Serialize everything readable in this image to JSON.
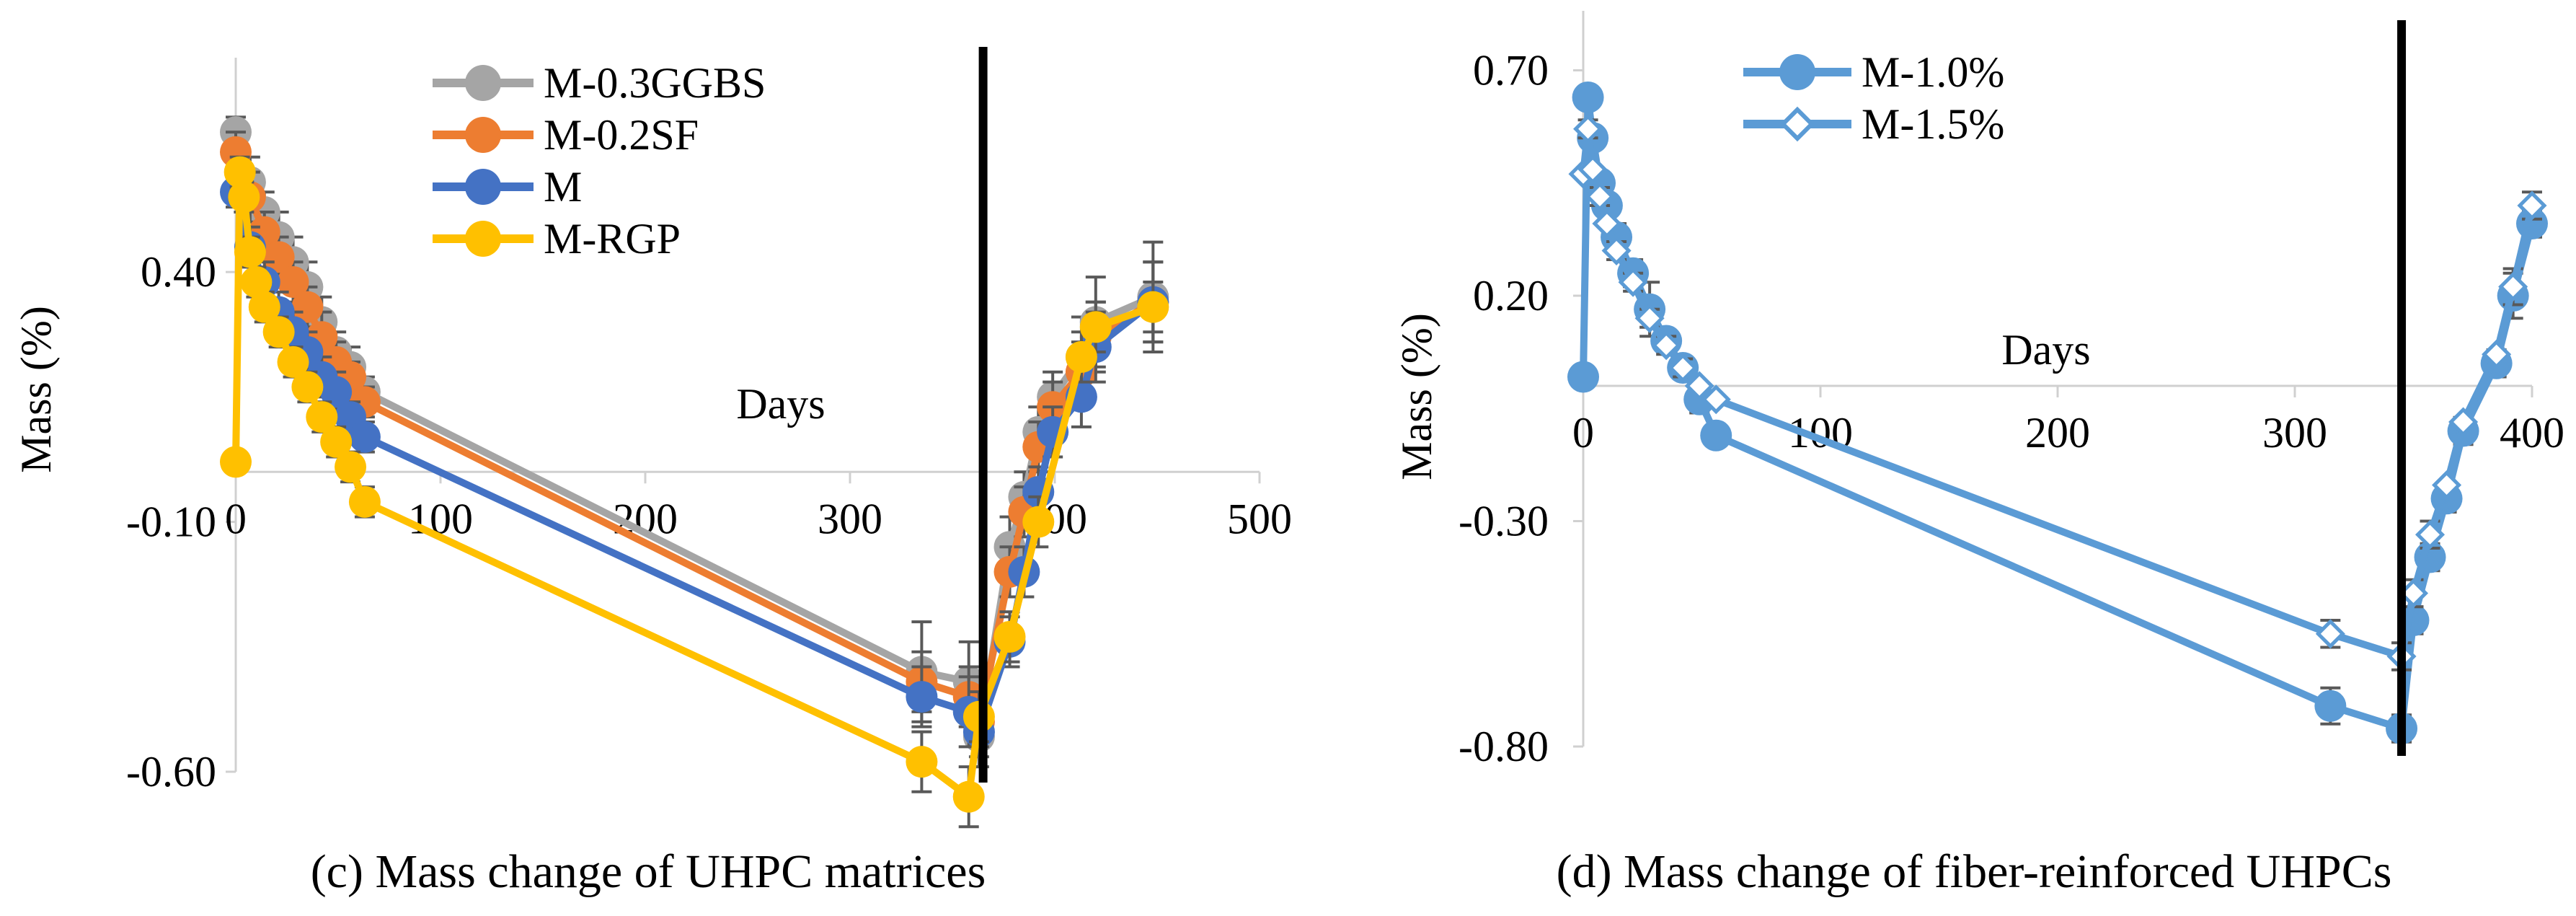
{
  "chart_data": [
    {
      "type": "line",
      "caption": "(c) Mass change of UHPC matrices",
      "xlabel": "Days",
      "ylabel": "Mass  (%)",
      "xlim": [
        0,
        500
      ],
      "ylim": [
        -0.6,
        0.8
      ],
      "x_ticks": [
        "0",
        "100",
        "200",
        "300",
        "400",
        "500"
      ],
      "y_ticks": [
        "0.40",
        "-0.10",
        "-0.60"
      ],
      "y_tick_values": [
        0.4,
        -0.1,
        -0.6
      ],
      "marker_line": 365,
      "legend": [
        "M-0.3GGBS",
        "M-0.2SF",
        "M",
        "M-RGP"
      ],
      "series": [
        {
          "name": "M-0.3GGBS",
          "color": "#A5A5A5",
          "marker": "circle",
          "points": [
            [
              0,
              0.68
            ],
            [
              7,
              0.58
            ],
            [
              14,
              0.52
            ],
            [
              21,
              0.47
            ],
            [
              28,
              0.42
            ],
            [
              35,
              0.37
            ],
            [
              42,
              0.3
            ],
            [
              49,
              0.24
            ],
            [
              56,
              0.21
            ],
            [
              63,
              0.16
            ],
            [
              335,
              -0.4
            ],
            [
              358,
              -0.42
            ],
            [
              363,
              -0.53
            ],
            [
              378,
              -0.15
            ],
            [
              385,
              -0.05
            ],
            [
              392,
              0.08
            ],
            [
              399,
              0.15
            ],
            [
              413,
              0.23
            ],
            [
              420,
              0.3
            ],
            [
              448,
              0.35
            ]
          ],
          "errors": [
            [
              0,
              0.03
            ],
            [
              7,
              0.05
            ],
            [
              14,
              0.04
            ],
            [
              21,
              0.05
            ],
            [
              28,
              0.05
            ],
            [
              35,
              0.05
            ],
            [
              42,
              0.05
            ],
            [
              49,
              0.04
            ],
            [
              56,
              0.04
            ],
            [
              63,
              0.03
            ],
            [
              335,
              0.1
            ],
            [
              358,
              0.08
            ],
            [
              363,
              0.06
            ],
            [
              378,
              0.06
            ],
            [
              385,
              0.05
            ],
            [
              392,
              0.05
            ],
            [
              399,
              0.05
            ],
            [
              413,
              0.08
            ],
            [
              420,
              0.09
            ],
            [
              448,
              0.11
            ]
          ]
        },
        {
          "name": "M-0.2SF",
          "color": "#ED7D31",
          "marker": "circle",
          "points": [
            [
              0,
              0.64
            ],
            [
              7,
              0.55
            ],
            [
              14,
              0.48
            ],
            [
              21,
              0.43
            ],
            [
              28,
              0.38
            ],
            [
              35,
              0.33
            ],
            [
              42,
              0.27
            ],
            [
              49,
              0.22
            ],
            [
              56,
              0.19
            ],
            [
              63,
              0.14
            ],
            [
              335,
              -0.42
            ],
            [
              358,
              -0.45
            ],
            [
              363,
              -0.5
            ],
            [
              378,
              -0.2
            ],
            [
              385,
              -0.08
            ],
            [
              392,
              0.05
            ],
            [
              399,
              0.13
            ],
            [
              413,
              0.2
            ],
            [
              420,
              0.27
            ],
            [
              448,
              0.34
            ]
          ],
          "errors": [
            [
              0,
              0.04
            ],
            [
              7,
              0.05
            ],
            [
              14,
              0.04
            ],
            [
              21,
              0.04
            ],
            [
              28,
              0.04
            ],
            [
              35,
              0.04
            ],
            [
              42,
              0.05
            ],
            [
              49,
              0.04
            ],
            [
              56,
              0.03
            ],
            [
              63,
              0.03
            ],
            [
              335,
              0.06
            ],
            [
              358,
              0.06
            ],
            [
              363,
              0.05
            ],
            [
              378,
              0.05
            ],
            [
              385,
              0.05
            ],
            [
              392,
              0.05
            ],
            [
              399,
              0.05
            ],
            [
              413,
              0.06
            ],
            [
              420,
              0.07
            ],
            [
              448,
              0.08
            ]
          ]
        },
        {
          "name": "M",
          "color": "#4472C4",
          "marker": "circle",
          "points": [
            [
              0,
              0.56
            ],
            [
              7,
              0.45
            ],
            [
              14,
              0.38
            ],
            [
              21,
              0.32
            ],
            [
              28,
              0.28
            ],
            [
              35,
              0.24
            ],
            [
              42,
              0.19
            ],
            [
              49,
              0.16
            ],
            [
              56,
              0.11
            ],
            [
              63,
              0.07
            ],
            [
              335,
              -0.45
            ],
            [
              358,
              -0.48
            ],
            [
              363,
              -0.52
            ],
            [
              378,
              -0.34
            ],
            [
              385,
              -0.2
            ],
            [
              392,
              -0.04
            ],
            [
              399,
              0.08
            ],
            [
              413,
              0.15
            ],
            [
              420,
              0.25
            ],
            [
              448,
              0.34
            ]
          ],
          "errors": [
            [
              0,
              0.03
            ],
            [
              7,
              0.04
            ],
            [
              14,
              0.04
            ],
            [
              21,
              0.04
            ],
            [
              28,
              0.04
            ],
            [
              35,
              0.04
            ],
            [
              42,
              0.04
            ],
            [
              49,
              0.04
            ],
            [
              56,
              0.03
            ],
            [
              63,
              0.03
            ],
            [
              335,
              0.06
            ],
            [
              358,
              0.07
            ],
            [
              363,
              0.05
            ],
            [
              378,
              0.05
            ],
            [
              385,
              0.05
            ],
            [
              392,
              0.05
            ],
            [
              399,
              0.05
            ],
            [
              413,
              0.06
            ],
            [
              420,
              0.07
            ],
            [
              448,
              0.08
            ]
          ]
        },
        {
          "name": "M-RGP",
          "color": "#FFC000",
          "marker": "circle",
          "points": [
            [
              0,
              0.02
            ],
            [
              2,
              0.6
            ],
            [
              4,
              0.55
            ],
            [
              7,
              0.44
            ],
            [
              10,
              0.38
            ],
            [
              14,
              0.33
            ],
            [
              21,
              0.28
            ],
            [
              28,
              0.22
            ],
            [
              35,
              0.17
            ],
            [
              42,
              0.11
            ],
            [
              49,
              0.06
            ],
            [
              56,
              0.01
            ],
            [
              63,
              -0.06
            ],
            [
              335,
              -0.58
            ],
            [
              358,
              -0.65
            ],
            [
              363,
              -0.49
            ],
            [
              378,
              -0.33
            ],
            [
              392,
              -0.1
            ],
            [
              413,
              0.23
            ],
            [
              420,
              0.29
            ],
            [
              448,
              0.33
            ]
          ],
          "errors": [
            [
              0,
              0.02
            ],
            [
              2,
              0.03
            ],
            [
              4,
              0.03
            ],
            [
              7,
              0.03
            ],
            [
              10,
              0.03
            ],
            [
              14,
              0.03
            ],
            [
              21,
              0.03
            ],
            [
              28,
              0.03
            ],
            [
              35,
              0.03
            ],
            [
              42,
              0.03
            ],
            [
              49,
              0.03
            ],
            [
              56,
              0.03
            ],
            [
              63,
              0.03
            ],
            [
              335,
              0.06
            ],
            [
              358,
              0.06
            ],
            [
              363,
              0.05
            ],
            [
              378,
              0.05
            ],
            [
              392,
              0.05
            ],
            [
              413,
              0.05
            ],
            [
              420,
              0.05
            ],
            [
              448,
              0.05
            ]
          ]
        }
      ]
    },
    {
      "type": "line",
      "caption": "(d) Mass change of fiber-reinforced UHPCs",
      "xlabel": "Days",
      "ylabel": "Mass  (%)",
      "xlim": [
        0,
        400
      ],
      "ylim": [
        -0.8,
        0.8
      ],
      "x_ticks": [
        "0",
        "100",
        "200",
        "300",
        "400"
      ],
      "y_ticks": [
        "0.70",
        "0.20",
        "-0.30",
        "-0.80"
      ],
      "y_tick_values": [
        0.7,
        0.2,
        -0.3,
        -0.8
      ],
      "marker_line": 345,
      "legend": [
        "M-1.0%",
        "M-1.5%"
      ],
      "series": [
        {
          "name": "M-1.0%",
          "color": "#5B9BD5",
          "marker": "circle",
          "points": [
            [
              0,
              0.02
            ],
            [
              2,
              0.64
            ],
            [
              4,
              0.55
            ],
            [
              7,
              0.45
            ],
            [
              10,
              0.4
            ],
            [
              14,
              0.33
            ],
            [
              21,
              0.25
            ],
            [
              28,
              0.17
            ],
            [
              35,
              0.1
            ],
            [
              42,
              0.04
            ],
            [
              49,
              -0.03
            ],
            [
              56,
              -0.11
            ],
            [
              315,
              -0.71
            ],
            [
              345,
              -0.76
            ],
            [
              350,
              -0.52
            ],
            [
              357,
              -0.38
            ],
            [
              364,
              -0.25
            ],
            [
              371,
              -0.1
            ],
            [
              385,
              0.05
            ],
            [
              392,
              0.2
            ],
            [
              400,
              0.36
            ]
          ],
          "errors": [
            [
              2,
              0.02
            ],
            [
              4,
              0.02
            ],
            [
              7,
              0.02
            ],
            [
              10,
              0.02
            ],
            [
              14,
              0.03
            ],
            [
              21,
              0.03
            ],
            [
              28,
              0.06
            ],
            [
              35,
              0.02
            ],
            [
              42,
              0.02
            ],
            [
              49,
              0.03
            ],
            [
              56,
              0.02
            ],
            [
              315,
              0.04
            ],
            [
              345,
              0.03
            ],
            [
              350,
              0.03
            ],
            [
              357,
              0.03
            ],
            [
              364,
              0.03
            ],
            [
              371,
              0.03
            ],
            [
              385,
              0.03
            ],
            [
              392,
              0.05
            ],
            [
              400,
              0.03
            ]
          ]
        },
        {
          "name": "M-1.5%",
          "color": "#5B9BD5",
          "marker": "diamond-open",
          "points": [
            [
              0,
              0.47
            ],
            [
              2,
              0.57
            ],
            [
              4,
              0.48
            ],
            [
              7,
              0.42
            ],
            [
              10,
              0.36
            ],
            [
              14,
              0.3
            ],
            [
              21,
              0.23
            ],
            [
              28,
              0.15
            ],
            [
              35,
              0.09
            ],
            [
              42,
              0.04
            ],
            [
              49,
              0.0
            ],
            [
              56,
              -0.03
            ],
            [
              315,
              -0.55
            ],
            [
              345,
              -0.6
            ],
            [
              350,
              -0.46
            ],
            [
              357,
              -0.33
            ],
            [
              364,
              -0.22
            ],
            [
              371,
              -0.08
            ],
            [
              385,
              0.07
            ],
            [
              392,
              0.22
            ],
            [
              400,
              0.4
            ]
          ],
          "errors": [
            [
              2,
              0.02
            ],
            [
              7,
              0.02
            ],
            [
              14,
              0.02
            ],
            [
              21,
              0.02
            ],
            [
              28,
              0.02
            ],
            [
              35,
              0.02
            ],
            [
              42,
              0.02
            ],
            [
              315,
              0.03
            ],
            [
              345,
              0.03
            ],
            [
              350,
              0.03
            ],
            [
              357,
              0.03
            ],
            [
              392,
              0.04
            ],
            [
              400,
              0.03
            ]
          ]
        }
      ]
    }
  ]
}
